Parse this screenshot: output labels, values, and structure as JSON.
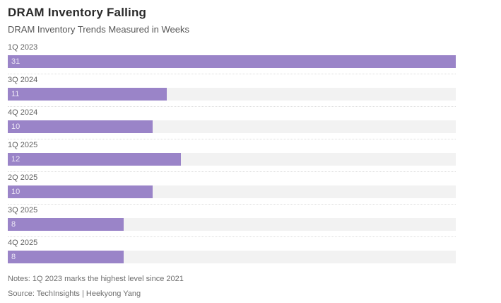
{
  "chart_data": {
    "type": "bar",
    "orientation": "horizontal",
    "title": "DRAM Inventory Falling",
    "subtitle": "DRAM Inventory Trends Measured in Weeks",
    "categories": [
      "1Q 2023",
      "3Q 2024",
      "4Q 2024",
      "1Q 2025",
      "2Q 2025",
      "3Q 2025",
      "4Q 2025"
    ],
    "values": [
      31,
      11,
      10,
      12,
      10,
      8,
      8
    ],
    "unit": "weeks",
    "xlabel": "",
    "ylabel": "",
    "xlim": [
      0,
      31
    ],
    "grid": false,
    "legend": false,
    "value_labels_shown": true,
    "notes": "Notes: 1Q 2023 marks the highest level since 2021",
    "source": "Source: TechInsights | Heekyong Yang",
    "colors": {
      "bar": "#9a84c8",
      "track": "#f2f2f2",
      "value_label": "#ece7f5",
      "separator": "#dedede"
    }
  }
}
